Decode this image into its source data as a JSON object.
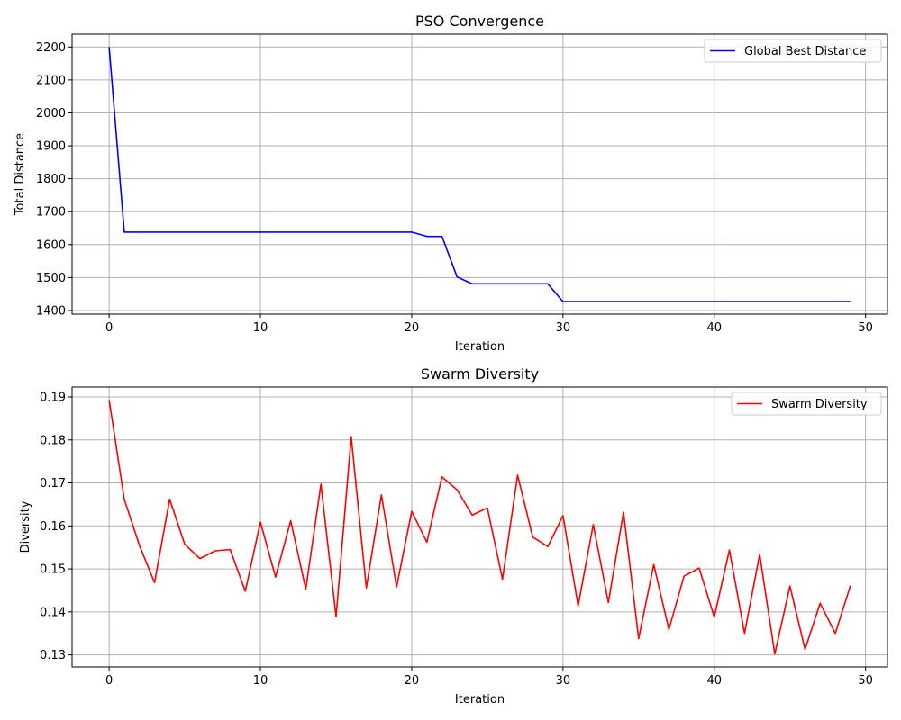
{
  "chart_data": [
    {
      "type": "line",
      "title": "PSO Convergence",
      "xlabel": "Iteration",
      "ylabel": "Total Distance",
      "xlim": [
        -2.45,
        51.45
      ],
      "ylim": [
        1389,
        2239
      ],
      "xticks": [
        0,
        10,
        20,
        30,
        40,
        50
      ],
      "yticks": [
        1400,
        1500,
        1600,
        1700,
        1800,
        1900,
        2000,
        2100,
        2200
      ],
      "grid": true,
      "legend": "top-right",
      "series": [
        {
          "name": "Global Best Distance",
          "color": "#0000ff",
          "x": [
            0,
            1,
            2,
            3,
            4,
            5,
            6,
            7,
            8,
            9,
            10,
            11,
            12,
            13,
            14,
            15,
            16,
            17,
            18,
            19,
            20,
            21,
            22,
            23,
            24,
            25,
            26,
            27,
            28,
            29,
            30,
            31,
            32,
            33,
            34,
            35,
            36,
            37,
            38,
            39,
            40,
            41,
            42,
            43,
            44,
            45,
            46,
            47,
            48,
            49
          ],
          "y": [
            2200,
            1638,
            1638,
            1638,
            1638,
            1638,
            1638,
            1638,
            1638,
            1638,
            1638,
            1638,
            1638,
            1638,
            1638,
            1638,
            1638,
            1638,
            1638,
            1638,
            1638,
            1625,
            1625,
            1502,
            1481,
            1481,
            1481,
            1481,
            1481,
            1481,
            1427,
            1427,
            1427,
            1427,
            1427,
            1427,
            1427,
            1427,
            1427,
            1427,
            1427,
            1427,
            1427,
            1427,
            1427,
            1427,
            1427,
            1427,
            1427,
            1427
          ]
        }
      ]
    },
    {
      "type": "line",
      "title": "Swarm Diversity",
      "xlabel": "Iteration",
      "ylabel": "Diversity",
      "xlim": [
        -2.45,
        51.45
      ],
      "ylim": [
        0.1272,
        0.1923
      ],
      "xticks": [
        0,
        10,
        20,
        30,
        40,
        50
      ],
      "yticks": [
        0.13,
        0.14,
        0.15,
        0.16,
        0.17,
        0.18,
        0.19
      ],
      "grid": true,
      "legend": "top-right",
      "series": [
        {
          "name": "Swarm Diversity",
          "color": "#ff0000",
          "x": [
            0,
            1,
            2,
            3,
            4,
            5,
            6,
            7,
            8,
            9,
            10,
            11,
            12,
            13,
            14,
            15,
            16,
            17,
            18,
            19,
            20,
            21,
            22,
            23,
            24,
            25,
            26,
            27,
            28,
            29,
            30,
            31,
            32,
            33,
            34,
            35,
            36,
            37,
            38,
            39,
            40,
            41,
            42,
            43,
            44,
            45,
            46,
            47,
            48,
            49
          ],
          "y": [
            0.1893,
            0.1662,
            0.1555,
            0.1468,
            0.1662,
            0.1557,
            0.1524,
            0.1542,
            0.1545,
            0.1448,
            0.1609,
            0.1481,
            0.1612,
            0.1453,
            0.1697,
            0.1389,
            0.1808,
            0.1456,
            0.1672,
            0.1458,
            0.1634,
            0.1562,
            0.1714,
            0.1684,
            0.1625,
            0.1642,
            0.1476,
            0.1718,
            0.1574,
            0.1552,
            0.1624,
            0.1414,
            0.1603,
            0.1422,
            0.1632,
            0.1338,
            0.151,
            0.1359,
            0.1483,
            0.1502,
            0.1388,
            0.1544,
            0.135,
            0.1534,
            0.1302,
            0.146,
            0.1313,
            0.142,
            0.135,
            0.1461
          ]
        }
      ]
    }
  ]
}
